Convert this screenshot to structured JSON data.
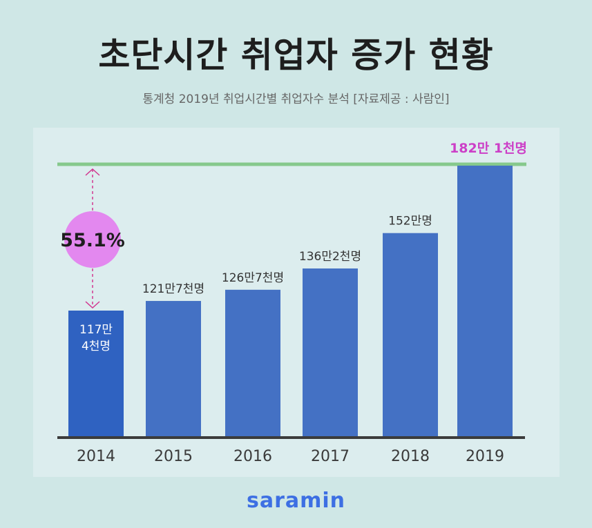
{
  "title": "초단시간 취업자 증가 현황",
  "subtitle": "통계청 2019년 취업시간별 취업자수 분석 [자료제공 : 사람인]",
  "brand": "saramin",
  "chart_data": {
    "type": "bar",
    "categories": [
      "2014",
      "2015",
      "2016",
      "2017",
      "2018",
      "2019"
    ],
    "values": [
      117.4,
      121.7,
      126.7,
      136.2,
      152.0,
      182.1
    ],
    "unit": "만명",
    "data_labels": [
      [
        "117만",
        "4천명"
      ],
      [
        "121만7천명"
      ],
      [
        "126만7천명"
      ],
      [
        "136만2천명"
      ],
      [
        "152만명"
      ],
      [
        "182만 1천명"
      ]
    ],
    "annotation": "55.1%",
    "colors": {
      "bar": "#4471c4",
      "bar_first": "#2f62c1",
      "reference_line": "#86c98c",
      "highlight_label": "#cc3fc7",
      "badge": "#e388ef",
      "arrow": "#d1378f",
      "axis": "#3b3b3b"
    }
  }
}
